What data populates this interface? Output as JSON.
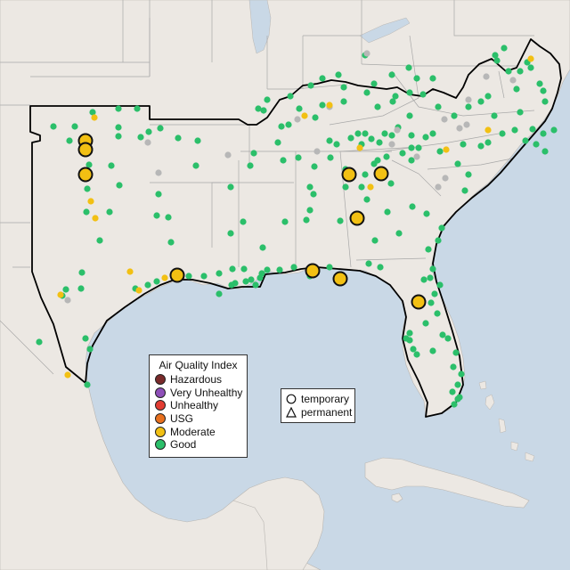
{
  "legend_aqi": {
    "title": "Air Quality Index",
    "items": [
      {
        "label": "Hazardous",
        "color": "#7a2a2a"
      },
      {
        "label": "Very Unhealthy",
        "color": "#8e4fb8"
      },
      {
        "label": "Unhealthy",
        "color": "#e23c32"
      },
      {
        "label": "USG",
        "color": "#e8701e"
      },
      {
        "label": "Moderate",
        "color": "#f2c013"
      },
      {
        "label": "Good",
        "color": "#2bbf6a"
      }
    ]
  },
  "legend_shape": {
    "temporary": "temporary",
    "permanent": "permanent"
  },
  "colors": {
    "ocean": "#c9d8e6",
    "land": "#ece8e3",
    "region_border": "#000000",
    "state_border": "#a8a8a8",
    "no_data": "#b7b7b7"
  }
}
